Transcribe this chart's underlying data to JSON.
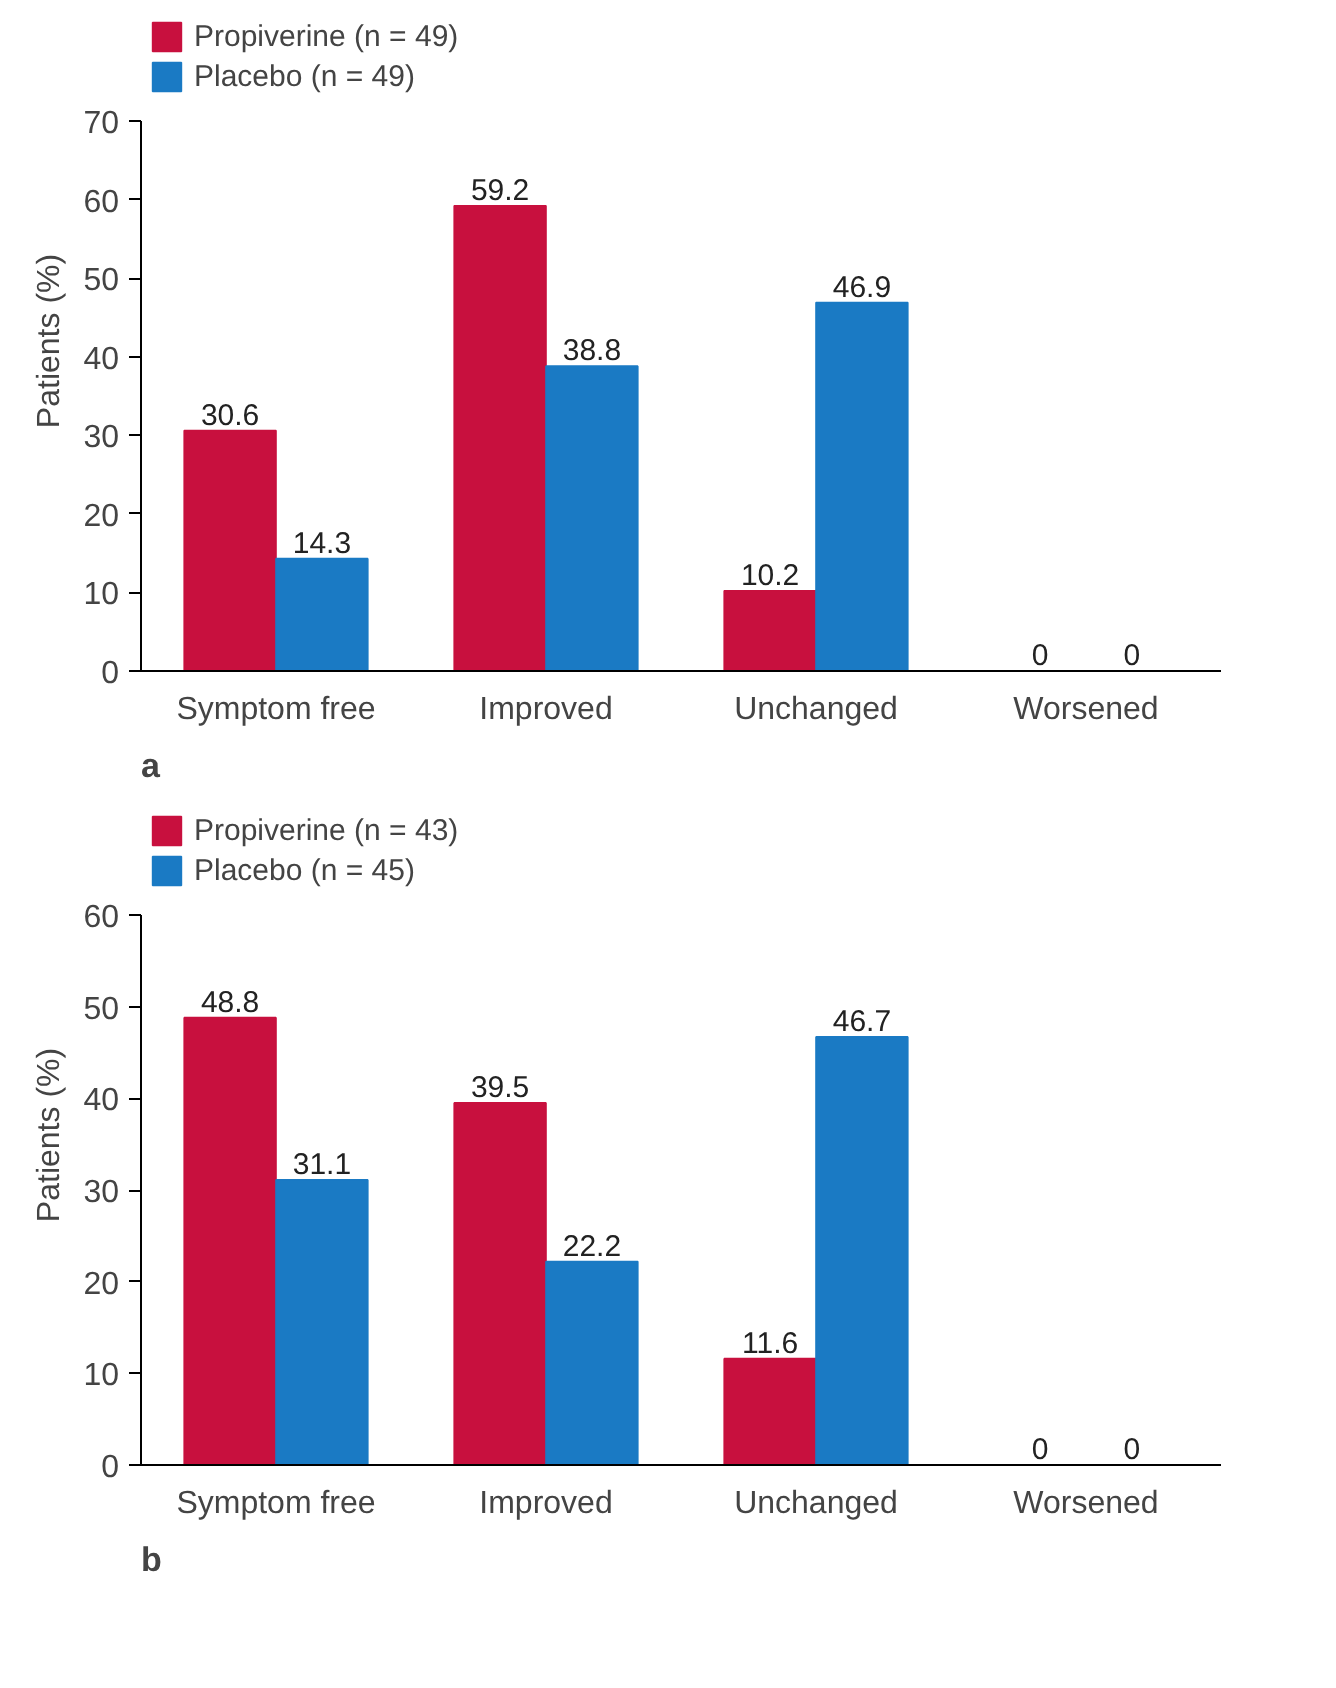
{
  "chart_data": [
    {
      "type": "bar",
      "categories": [
        "Symptom free",
        "Improved",
        "Unchanged",
        "Worsened"
      ],
      "ylabel": "Patients (%)",
      "ylim": [
        0,
        70
      ],
      "yticks": [
        0,
        10,
        20,
        30,
        40,
        50,
        60,
        70
      ],
      "grid": false,
      "legend": "top left",
      "data_labels": true,
      "annotations": [
        "a"
      ],
      "series": [
        {
          "name": "Propiverine (n = 49)",
          "color": "#c8103e",
          "values": [
            30.6,
            59.2,
            10.2,
            0
          ]
        },
        {
          "name": "Placebo (n = 49)",
          "color": "#1a7ac4",
          "values": [
            14.3,
            38.8,
            46.9,
            0
          ]
        }
      ]
    },
    {
      "type": "bar",
      "categories": [
        "Symptom free",
        "Improved",
        "Unchanged",
        "Worsened"
      ],
      "ylabel": "Patients (%)",
      "ylim": [
        0,
        60
      ],
      "yticks": [
        0,
        10,
        20,
        30,
        40,
        50,
        60
      ],
      "grid": false,
      "legend": "top left",
      "data_labels": true,
      "annotations": [
        "b"
      ],
      "series": [
        {
          "name": "Propiverine (n = 43)",
          "color": "#c8103e",
          "values": [
            48.8,
            39.5,
            11.6,
            0
          ]
        },
        {
          "name": "Placebo (n = 45)",
          "color": "#1a7ac4",
          "values": [
            31.1,
            22.2,
            46.7,
            0
          ]
        }
      ]
    }
  ]
}
